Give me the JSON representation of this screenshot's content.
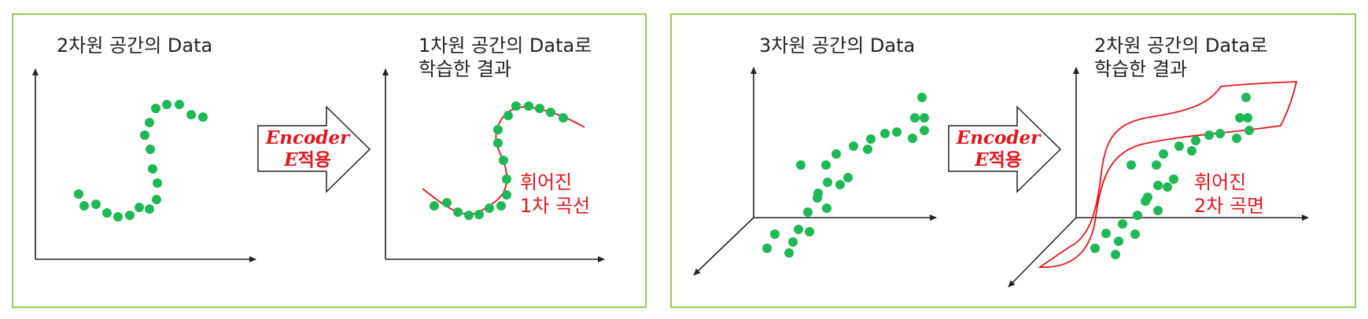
{
  "left_panel": {
    "input_caption": "2차원 공간의 Data",
    "output_caption_line1": "1차원 공간의 Data로",
    "output_caption_line2": "학습한 결과",
    "arrow_line1": "Encoder",
    "arrow_line2_italic": "E",
    "arrow_line2_rest": "적용",
    "curve_label_line1": "휘어진",
    "curve_label_line2": "1차 곡선"
  },
  "right_panel": {
    "input_caption": "3차원 공간의 Data",
    "output_caption_line1": "2차원 공간의 Data로",
    "output_caption_line2": "학습한 결과",
    "arrow_line1": "Encoder",
    "arrow_line2_italic": "E",
    "arrow_line2_rest": "적용",
    "surface_label_line1": "휘어진",
    "surface_label_line2": "2차 곡면"
  },
  "colors": {
    "border": "#8fd14f",
    "dot": "#1db954",
    "red": "#e8141b",
    "axis": "#222222"
  },
  "icons": [
    "right-arrow-icon"
  ]
}
